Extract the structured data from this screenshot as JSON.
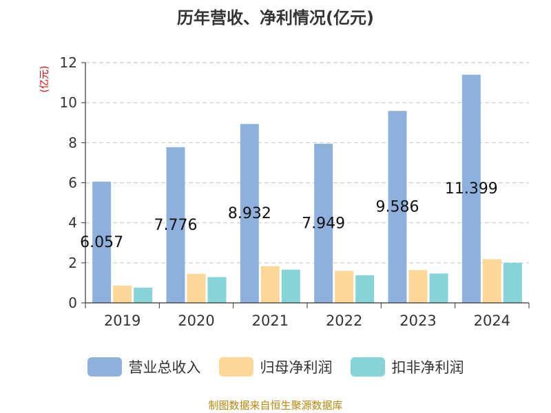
{
  "chart_data": {
    "type": "bar",
    "title": "历年营收、净利情况(亿元)",
    "ylabel": "(亿元)",
    "xlabel": "",
    "categories": [
      "2019",
      "2020",
      "2021",
      "2022",
      "2023",
      "2024"
    ],
    "ylim": [
      0,
      12
    ],
    "yticks": [
      "0",
      "2",
      "4",
      "6",
      "8",
      "10",
      "12"
    ],
    "grid": true,
    "legend_position": "bottom",
    "series": [
      {
        "name": "营业总收入",
        "color": "#8eb0dc",
        "values": [
          6.057,
          7.776,
          8.932,
          7.949,
          9.586,
          11.399
        ],
        "labels": [
          "6.057",
          "7.776",
          "8.932",
          "7.949",
          "9.586",
          "11.399"
        ]
      },
      {
        "name": "归母净利润",
        "color": "#fdd797",
        "values": [
          0.86,
          1.45,
          1.83,
          1.6,
          1.64,
          2.18
        ]
      },
      {
        "name": "扣非净利润",
        "color": "#86d4d8",
        "values": [
          0.76,
          1.29,
          1.66,
          1.38,
          1.47,
          2.0
        ]
      }
    ]
  },
  "footer": {
    "source": "制图数据来自恒生聚源数据库"
  },
  "colors": {
    "grid": "#cccccc",
    "axis": "#333333",
    "ylabel": "#e00000"
  }
}
